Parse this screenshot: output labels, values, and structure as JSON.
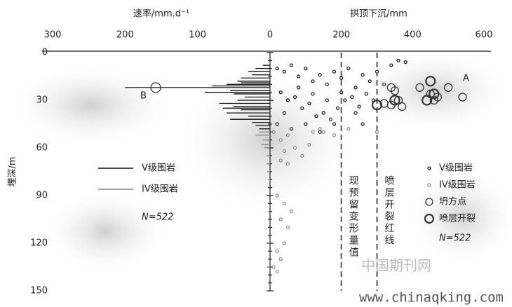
{
  "chart_data": {
    "type": "scatter",
    "x1label": "速率/mm.d⁻¹",
    "x2label": "拱顶下沉/mm",
    "ylabel": "埋深/m",
    "x1lim": [
      300,
      0
    ],
    "x1ticks": [
      300,
      200,
      100,
      0
    ],
    "x2lim": [
      0,
      600
    ],
    "x2ticks": [
      200,
      400,
      600
    ],
    "ylim": [
      0,
      150
    ],
    "yticks": [
      0,
      30,
      60,
      90,
      120,
      150
    ],
    "series": [
      {
        "name": "V级围岩",
        "kind": "rate",
        "axis": "x1",
        "color": "#111",
        "x": [
          10,
          20,
          30,
          25,
          40,
          45,
          60,
          200,
          55,
          50,
          35,
          45,
          70,
          50,
          40,
          60,
          30,
          55,
          25,
          20,
          15,
          80,
          90,
          65,
          40
        ],
        "y": [
          8,
          10,
          12,
          14,
          16,
          18,
          20,
          22,
          24,
          26,
          28,
          30,
          32,
          34,
          36,
          38,
          40,
          42,
          44,
          46,
          48,
          21,
          25,
          35,
          19
        ]
      },
      {
        "name": "IV级围岩",
        "kind": "rate",
        "axis": "x1",
        "color": "#888",
        "x": [
          15,
          10,
          8,
          6,
          5,
          4,
          3,
          3,
          2,
          5,
          20,
          12
        ],
        "y": [
          50,
          55,
          60,
          65,
          70,
          75,
          80,
          100,
          120,
          135,
          52,
          58
        ]
      },
      {
        "name": "V级围岩",
        "kind": "point",
        "axis": "x2",
        "color": "#111",
        "x": [
          20,
          40,
          60,
          80,
          100,
          120,
          140,
          160,
          180,
          200,
          220,
          240,
          260,
          280,
          300,
          320,
          340,
          360,
          380,
          30,
          50,
          70,
          90,
          110,
          130,
          150,
          170,
          190,
          210,
          230,
          250,
          270,
          290,
          20,
          60,
          100,
          140,
          180,
          40,
          80,
          120,
          160,
          200,
          240,
          260
        ],
        "y": [
          10,
          12,
          8,
          15,
          10,
          18,
          14,
          20,
          12,
          16,
          10,
          22,
          14,
          18,
          12,
          20,
          8,
          5,
          6,
          25,
          30,
          28,
          35,
          32,
          40,
          38,
          42,
          35,
          30,
          28,
          34,
          26,
          30,
          45,
          48,
          45,
          50,
          45,
          38,
          22,
          26,
          30,
          25,
          38,
          45
        ]
      },
      {
        "name": "IV级围岩",
        "kind": "point",
        "axis": "x2",
        "color": "#888",
        "x": [
          10,
          30,
          50,
          70,
          90,
          110,
          120,
          140,
          30,
          50,
          20,
          40,
          60,
          30,
          50,
          40,
          20,
          30,
          10,
          20,
          150,
          180,
          220,
          300,
          40
        ],
        "y": [
          50,
          55,
          52,
          60,
          65,
          58,
          50,
          48,
          68,
          70,
          90,
          95,
          100,
          105,
          110,
          120,
          125,
          130,
          135,
          138,
          50,
          52,
          48,
          50,
          62
        ]
      },
      {
        "name": "坍方点",
        "kind": "collapse",
        "axis": "x2",
        "color": "#333",
        "x": [
          340,
          350,
          320,
          340,
          360,
          370,
          420,
          450,
          460,
          470,
          500,
          540
        ],
        "y": [
          22,
          24,
          32,
          33,
          30,
          34,
          22,
          26,
          30,
          28,
          22,
          28
        ]
      },
      {
        "name": "喷层开裂",
        "kind": "crack",
        "axis": "x2",
        "color": "#333",
        "x": [
          300,
          350,
          450,
          460,
          440
        ],
        "y": [
          33,
          30,
          18,
          26,
          30
        ]
      }
    ],
    "reference_lines": [
      {
        "x": 200,
        "label": "现预留变形量值"
      },
      {
        "x": 300,
        "label": "喷层开裂红线"
      }
    ],
    "annotations": [
      "A",
      "B"
    ],
    "legend_notes": [
      "N=522",
      "N=522"
    ],
    "watermark": [
      "中国期刊网",
      "www.chinaqking.com"
    ]
  }
}
